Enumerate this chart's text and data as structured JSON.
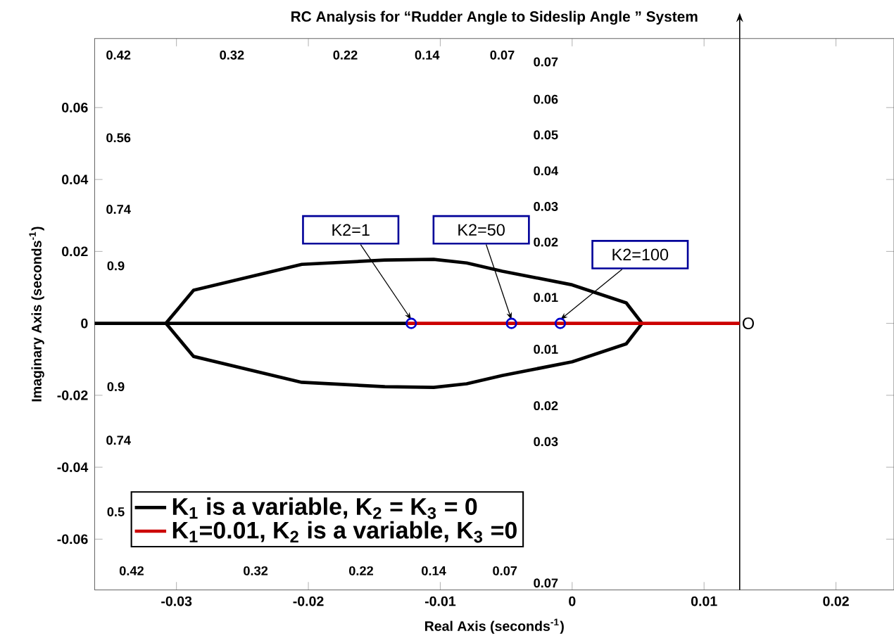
{
  "chart_data": {
    "type": "line",
    "title": "RC Analysis for  “Rudder Angle to Sideslip Angle ” System",
    "xlabel": "Real Axis (seconds$^{-1}$)",
    "ylabel": "Imaginary Axis (seconds$^{-1}$)",
    "xlim": [
      -0.0362,
      0.0244
    ],
    "ylim": [
      -0.0741,
      0.0792
    ],
    "xticks": [
      -0.03,
      -0.02,
      -0.01,
      0,
      0.01,
      0.02
    ],
    "yticks": [
      -0.06,
      -0.04,
      -0.02,
      0,
      0.02,
      0.04,
      0.06
    ],
    "legend": "bottom left",
    "series": [
      {
        "name": "K$_{1}$ is a variable, K$_{2}$ = K$_{3}$ = 0",
        "color": "#000000",
        "x": [
          -0.0362,
          -0.0308,
          -0.0287,
          -0.0205,
          -0.0142,
          -0.0105,
          -0.008,
          -0.0053,
          0,
          0.0041,
          0.0053,
          0.0041,
          0,
          -0.0053,
          -0.008,
          -0.0105,
          -0.0142,
          -0.0205,
          -0.0287,
          -0.0308,
          -0.0125
        ],
        "values": [
          0,
          0,
          0.0092,
          0.0164,
          0.0176,
          0.0178,
          0.0168,
          0.0145,
          0.0107,
          0.0057,
          0,
          -0.0057,
          -0.0107,
          -0.0145,
          -0.0168,
          -0.0178,
          -0.0176,
          -0.0164,
          -0.0092,
          0,
          0
        ]
      },
      {
        "name": "K$_{1}$=0.01, K$_{2}$ is a variable, K$_{3}$ =0",
        "color": "#cc0000",
        "x": [
          -0.0125,
          0.0127
        ],
        "values": [
          0,
          0
        ]
      },
      {
        "type": "scatter",
        "marker": "circle",
        "color": "#0000cc",
        "x": [
          -0.0122,
          -0.0046,
          -0.0009
        ],
        "values": [
          0,
          0,
          0
        ]
      }
    ],
    "ref_lines": [
      {
        "axis": "x",
        "value": 0.0127,
        "label": "O",
        "color": "#000000"
      }
    ],
    "annotations": [
      {
        "text": "K2=1",
        "x": -0.0122,
        "y": 0
      },
      {
        "text": "K2=50",
        "x": -0.0046,
        "y": 0
      },
      {
        "text": "K2=100",
        "x": -0.0009,
        "y": 0
      },
      "0.42",
      "0.32",
      "0.22",
      "0.14",
      "0.07",
      "0.07",
      "0.06",
      "0.05",
      "0.04",
      "0.03",
      "0.02",
      "0.01",
      "0.56",
      "0.74",
      "0.9",
      "0.9",
      "0.74",
      "0.5",
      "0.01",
      "0.02",
      "0.03",
      "0.42",
      "0.32",
      "0.22",
      "0.14",
      "0.07",
      "0.07"
    ]
  }
}
